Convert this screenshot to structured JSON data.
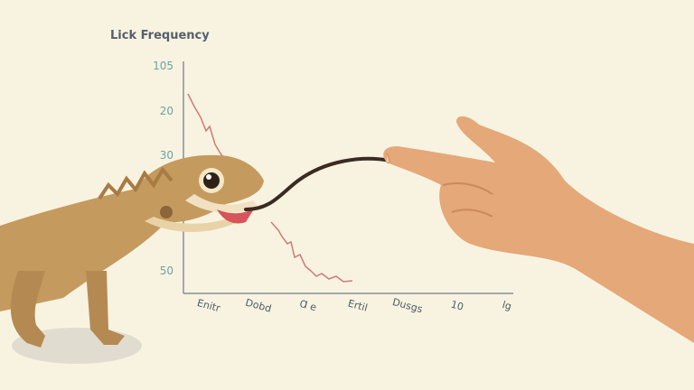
{
  "title": "Lick Frequency",
  "y_labels": [
    "105",
    "20",
    "30",
    "50"
  ],
  "x_labels": [
    "Enitr",
    "Dobd",
    "Ɑ e",
    "Ertil",
    "Dusgs",
    "10",
    "lg"
  ]
}
